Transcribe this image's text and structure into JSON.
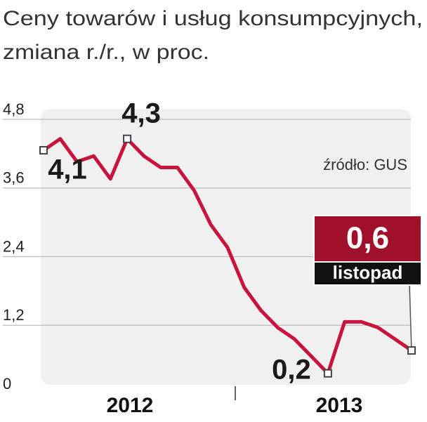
{
  "chart_data": {
    "type": "line",
    "title": "Ceny towarów i usług konsumpcyjnych,",
    "subtitle": "zmiana r./r., w proc.",
    "source": "źródło: GUS",
    "annotation": "listopad",
    "year_labels": [
      "2012",
      "2013"
    ],
    "color": "#c8143c",
    "values": [
      4.1,
      4.3,
      3.9,
      4.0,
      3.6,
      4.3,
      4.0,
      3.8,
      3.8,
      3.4,
      2.8,
      2.4,
      1.7,
      1.3,
      1.0,
      0.8,
      0.5,
      0.2,
      1.1,
      1.1,
      1.0,
      0.8,
      0.6
    ],
    "value_labels": [
      "4,1",
      null,
      null,
      null,
      null,
      "4,3",
      null,
      null,
      null,
      null,
      null,
      null,
      null,
      null,
      null,
      null,
      null,
      "0,2",
      null,
      null,
      null,
      null,
      "0,6"
    ],
    "ylim": [
      0,
      4.8
    ],
    "yticks": [
      0,
      {
        "value": 1.2,
        "label": "1,2"
      },
      {
        "value": 2.4,
        "label": "2,4"
      },
      {
        "value": 3.6,
        "label": "3,6"
      },
      {
        "value": 4.8,
        "label": "4,8"
      }
    ],
    "grid": true
  }
}
